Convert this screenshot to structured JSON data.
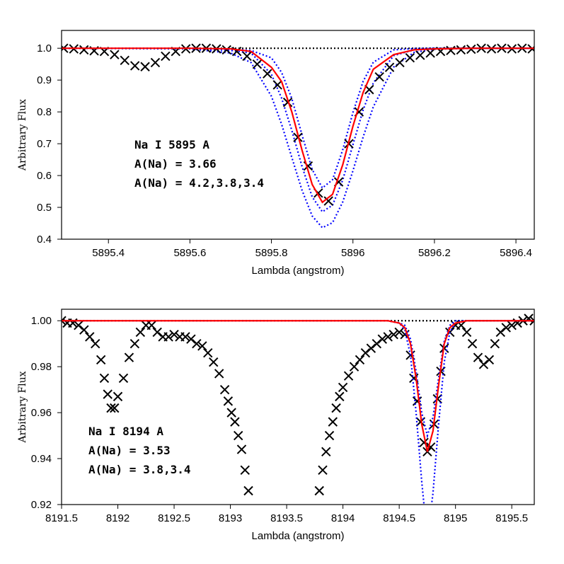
{
  "chart_data": [
    {
      "type": "line",
      "xlabel": "Lambda (angstrom)",
      "ylabel": "Arbitrary Flux",
      "xlim": [
        5895.285,
        5896.445
      ],
      "ylim": [
        0.4,
        1.056
      ],
      "xticks": [
        5895.4,
        5895.6,
        5895.8,
        5896,
        5896.2,
        5896.4
      ],
      "yticks": [
        0.4,
        0.5,
        0.6,
        0.7,
        0.8,
        0.9,
        {
          "value": 1,
          "label": "1.0"
        }
      ],
      "annotations": [
        {
          "text": "Na I 5895 A",
          "color": "#000000"
        },
        {
          "text": "A(Na) = 3.66",
          "color": "#ff0000"
        },
        {
          "text": "A(Na) = 4.2,3.8,3.4",
          "color": "#0000ff"
        }
      ],
      "series": [
        {
          "type": "line",
          "linestyle": "dotted",
          "color": "#000000",
          "x": [
            5895.285,
            5896.445
          ],
          "values": [
            1,
            1
          ]
        },
        {
          "type": "line",
          "linestyle": "dotted",
          "color": "#0000ff",
          "x": [
            5895.285,
            5895.6,
            5895.7,
            5895.75,
            5895.8,
            5895.825,
            5895.85,
            5895.875,
            5895.9,
            5895.925,
            5895.95,
            5895.975,
            5896.0,
            5896.025,
            5896.05,
            5896.1,
            5896.15,
            5896.2,
            5896.3,
            5896.445
          ],
          "values": [
            1.0,
            0.998,
            0.985,
            0.955,
            0.849,
            0.761,
            0.657,
            0.554,
            0.473,
            0.436,
            0.452,
            0.517,
            0.615,
            0.721,
            0.816,
            0.941,
            0.987,
            0.997,
            1.0,
            1.0
          ]
        },
        {
          "type": "line",
          "linestyle": "dotted",
          "color": "#0000ff",
          "x": [
            5895.285,
            5895.6,
            5895.7,
            5895.75,
            5895.8,
            5895.825,
            5895.85,
            5895.875,
            5895.9,
            5895.925,
            5895.95,
            5895.975,
            5896.0,
            5896.025,
            5896.05,
            5896.1,
            5896.15,
            5896.2,
            5896.3,
            5896.445
          ],
          "values": [
            1.0,
            1.0,
            0.993,
            0.985,
            0.918,
            0.843,
            0.742,
            0.629,
            0.533,
            0.486,
            0.507,
            0.586,
            0.697,
            0.806,
            0.891,
            0.977,
            0.995,
            0.999,
            1.0,
            1.0
          ]
        },
        {
          "type": "line",
          "linestyle": "dotted",
          "color": "#0000ff",
          "x": [
            5895.285,
            5895.6,
            5895.7,
            5895.75,
            5895.8,
            5895.825,
            5895.85,
            5895.875,
            5895.9,
            5895.925,
            5895.95,
            5895.975,
            5896.0,
            5896.025,
            5896.05,
            5896.1,
            5896.15,
            5896.2,
            5896.3,
            5896.445
          ],
          "values": [
            1.0,
            1.0,
            0.997,
            0.993,
            0.97,
            0.924,
            0.842,
            0.728,
            0.619,
            0.561,
            0.587,
            0.681,
            0.798,
            0.896,
            0.956,
            0.995,
            0.999,
            1.0,
            1.0,
            1.0
          ]
        },
        {
          "type": "scatter",
          "color": "#000000",
          "x": [
            5895.29,
            5895.315,
            5895.34,
            5895.365,
            5895.39,
            5895.415,
            5895.44,
            5895.465,
            5895.49,
            5895.515,
            5895.54,
            5895.565,
            5895.59,
            5895.615,
            5895.64,
            5895.665,
            5895.69,
            5895.715,
            5895.74,
            5895.765,
            5895.79,
            5895.815,
            5895.84,
            5895.865,
            5895.89,
            5895.915,
            5895.94,
            5895.965,
            5895.99,
            5896.015,
            5896.04,
            5896.065,
            5896.09,
            5896.115,
            5896.14,
            5896.165,
            5896.19,
            5896.215,
            5896.24,
            5896.265,
            5896.29,
            5896.315,
            5896.34,
            5896.365,
            5896.39,
            5896.415,
            5896.44
          ],
          "values": [
            1.0,
            0.998,
            0.995,
            0.992,
            0.99,
            0.98,
            0.962,
            0.945,
            0.942,
            0.955,
            0.975,
            0.99,
            0.998,
            1.0,
            1.0,
            0.998,
            0.995,
            0.99,
            0.975,
            0.95,
            0.92,
            0.885,
            0.83,
            0.72,
            0.63,
            0.545,
            0.52,
            0.58,
            0.7,
            0.8,
            0.87,
            0.91,
            0.94,
            0.955,
            0.97,
            0.978,
            0.985,
            0.99,
            0.993,
            0.995,
            0.997,
            1.0,
            0.998,
            1.0,
            0.998,
            1.0,
            0.998
          ]
        },
        {
          "type": "line",
          "linestyle": "solid",
          "color": "#ff0000",
          "x": [
            5895.285,
            5895.6,
            5895.7,
            5895.75,
            5895.8,
            5895.825,
            5895.85,
            5895.875,
            5895.9,
            5895.925,
            5895.95,
            5895.975,
            5896.0,
            5896.025,
            5896.05,
            5896.1,
            5896.15,
            5896.2,
            5896.3,
            5896.445
          ],
          "values": [
            1.0,
            1.0,
            0.998,
            0.99,
            0.94,
            0.895,
            0.8,
            0.68,
            0.572,
            0.516,
            0.541,
            0.634,
            0.755,
            0.861,
            0.934,
            0.98,
            0.995,
            0.998,
            1.0,
            1.0
          ]
        }
      ]
    },
    {
      "type": "line",
      "xlabel": "Lambda (angstrom)",
      "ylabel": "Arbitrary Flux",
      "xlim": [
        8191.5,
        8195.7
      ],
      "ylim": [
        0.92,
        1.005
      ],
      "xticks": [
        8191.5,
        8192,
        8192.5,
        8193,
        8193.5,
        8194,
        8194.5,
        8195,
        8195.5
      ],
      "yticks": [
        0.92,
        0.94,
        0.96,
        0.98,
        {
          "value": 1,
          "label": "1.00"
        }
      ],
      "annotations": [
        {
          "text": "Na I 8194 A",
          "color": "#000000"
        },
        {
          "text": "A(Na) = 3.53",
          "color": "#ff0000"
        },
        {
          "text": "A(Na) = 3.8,3.4",
          "color": "#0000ff"
        }
      ],
      "series": [
        {
          "type": "line",
          "linestyle": "dotted",
          "color": "#000000",
          "x": [
            8191.5,
            8195.7
          ],
          "values": [
            1,
            1
          ]
        },
        {
          "type": "scatter",
          "color": "#000000",
          "x": [
            8191.5,
            8191.55,
            8191.6,
            8191.65,
            8191.7,
            8191.75,
            8191.8,
            8191.85,
            8191.88,
            8191.91,
            8191.94,
            8191.97,
            8192.0,
            8192.05,
            8192.1,
            8192.15,
            8192.2,
            8192.25,
            8192.3,
            8192.35,
            8192.4,
            8192.45,
            8192.5,
            8192.55,
            8192.6,
            8192.65,
            8192.7,
            8192.75,
            8192.8,
            8192.85,
            8192.9,
            8192.95,
            8192.98,
            8193.01,
            8193.04,
            8193.07,
            8193.1,
            8193.13,
            8193.16,
            8193.79,
            8193.82,
            8193.85,
            8193.88,
            8193.91,
            8193.94,
            8193.97,
            8194.0,
            8194.05,
            8194.1,
            8194.15,
            8194.2,
            8194.25,
            8194.3,
            8194.35,
            8194.4,
            8194.45,
            8194.5,
            8194.55,
            8194.6,
            8194.63,
            8194.66,
            8194.69,
            8194.72,
            8194.75,
            8194.78,
            8194.81,
            8194.84,
            8194.87,
            8194.9,
            8194.95,
            8195.0,
            8195.05,
            8195.1,
            8195.15,
            8195.2,
            8195.25,
            8195.3,
            8195.35,
            8195.4,
            8195.45,
            8195.5,
            8195.55,
            8195.6,
            8195.65,
            8195.7
          ],
          "values": [
            1.0,
            0.999,
            0.999,
            0.998,
            0.996,
            0.993,
            0.99,
            0.983,
            0.975,
            0.968,
            0.962,
            0.962,
            0.967,
            0.975,
            0.984,
            0.99,
            0.995,
            0.998,
            0.998,
            0.995,
            0.993,
            0.993,
            0.994,
            0.993,
            0.993,
            0.992,
            0.99,
            0.989,
            0.986,
            0.982,
            0.977,
            0.97,
            0.965,
            0.96,
            0.956,
            0.95,
            0.944,
            0.935,
            0.926,
            0.926,
            0.935,
            0.943,
            0.95,
            0.956,
            0.962,
            0.967,
            0.971,
            0.976,
            0.98,
            0.983,
            0.986,
            0.988,
            0.99,
            0.992,
            0.993,
            0.994,
            0.995,
            0.994,
            0.985,
            0.975,
            0.965,
            0.956,
            0.947,
            0.943,
            0.945,
            0.955,
            0.966,
            0.978,
            0.988,
            0.995,
            0.998,
            0.998,
            0.995,
            0.99,
            0.984,
            0.981,
            0.983,
            0.99,
            0.995,
            0.997,
            0.998,
            0.999,
            1.0,
            1.001,
            1.0
          ]
        },
        {
          "type": "line",
          "linestyle": "dotted",
          "color": "#0000ff",
          "x": [
            8191.5,
            8194.4,
            8194.5,
            8194.55,
            8194.6,
            8194.65,
            8194.7,
            8194.75,
            8194.8,
            8194.85,
            8194.9,
            8194.95,
            8195.0,
            8195.1,
            8195.7
          ],
          "values": [
            1.0,
            1.0,
            0.999,
            0.996,
            0.985,
            0.96,
            0.93,
            0.905,
            0.925,
            0.955,
            0.982,
            0.995,
            0.999,
            1.0,
            1.0
          ]
        },
        {
          "type": "line",
          "linestyle": "dotted",
          "color": "#0000ff",
          "x": [
            8191.5,
            8194.4,
            8194.5,
            8194.55,
            8194.6,
            8194.65,
            8194.7,
            8194.75,
            8194.8,
            8194.85,
            8194.9,
            8194.95,
            8195.0,
            8195.1,
            8195.7
          ],
          "values": [
            1.0,
            1.0,
            0.999,
            0.998,
            0.992,
            0.978,
            0.96,
            0.95,
            0.958,
            0.975,
            0.991,
            0.998,
            1.0,
            1.0,
            1.0
          ]
        },
        {
          "type": "line",
          "linestyle": "solid",
          "color": "#ff0000",
          "x": [
            8191.5,
            8194.4,
            8194.5,
            8194.55,
            8194.6,
            8194.65,
            8194.7,
            8194.75,
            8194.8,
            8194.85,
            8194.9,
            8194.95,
            8195.0,
            8195.1,
            8195.7
          ],
          "values": [
            1.0,
            1.0,
            0.999,
            0.997,
            0.99,
            0.975,
            0.955,
            0.943,
            0.952,
            0.972,
            0.99,
            0.997,
            0.999,
            1.0,
            1.0
          ]
        }
      ]
    }
  ]
}
